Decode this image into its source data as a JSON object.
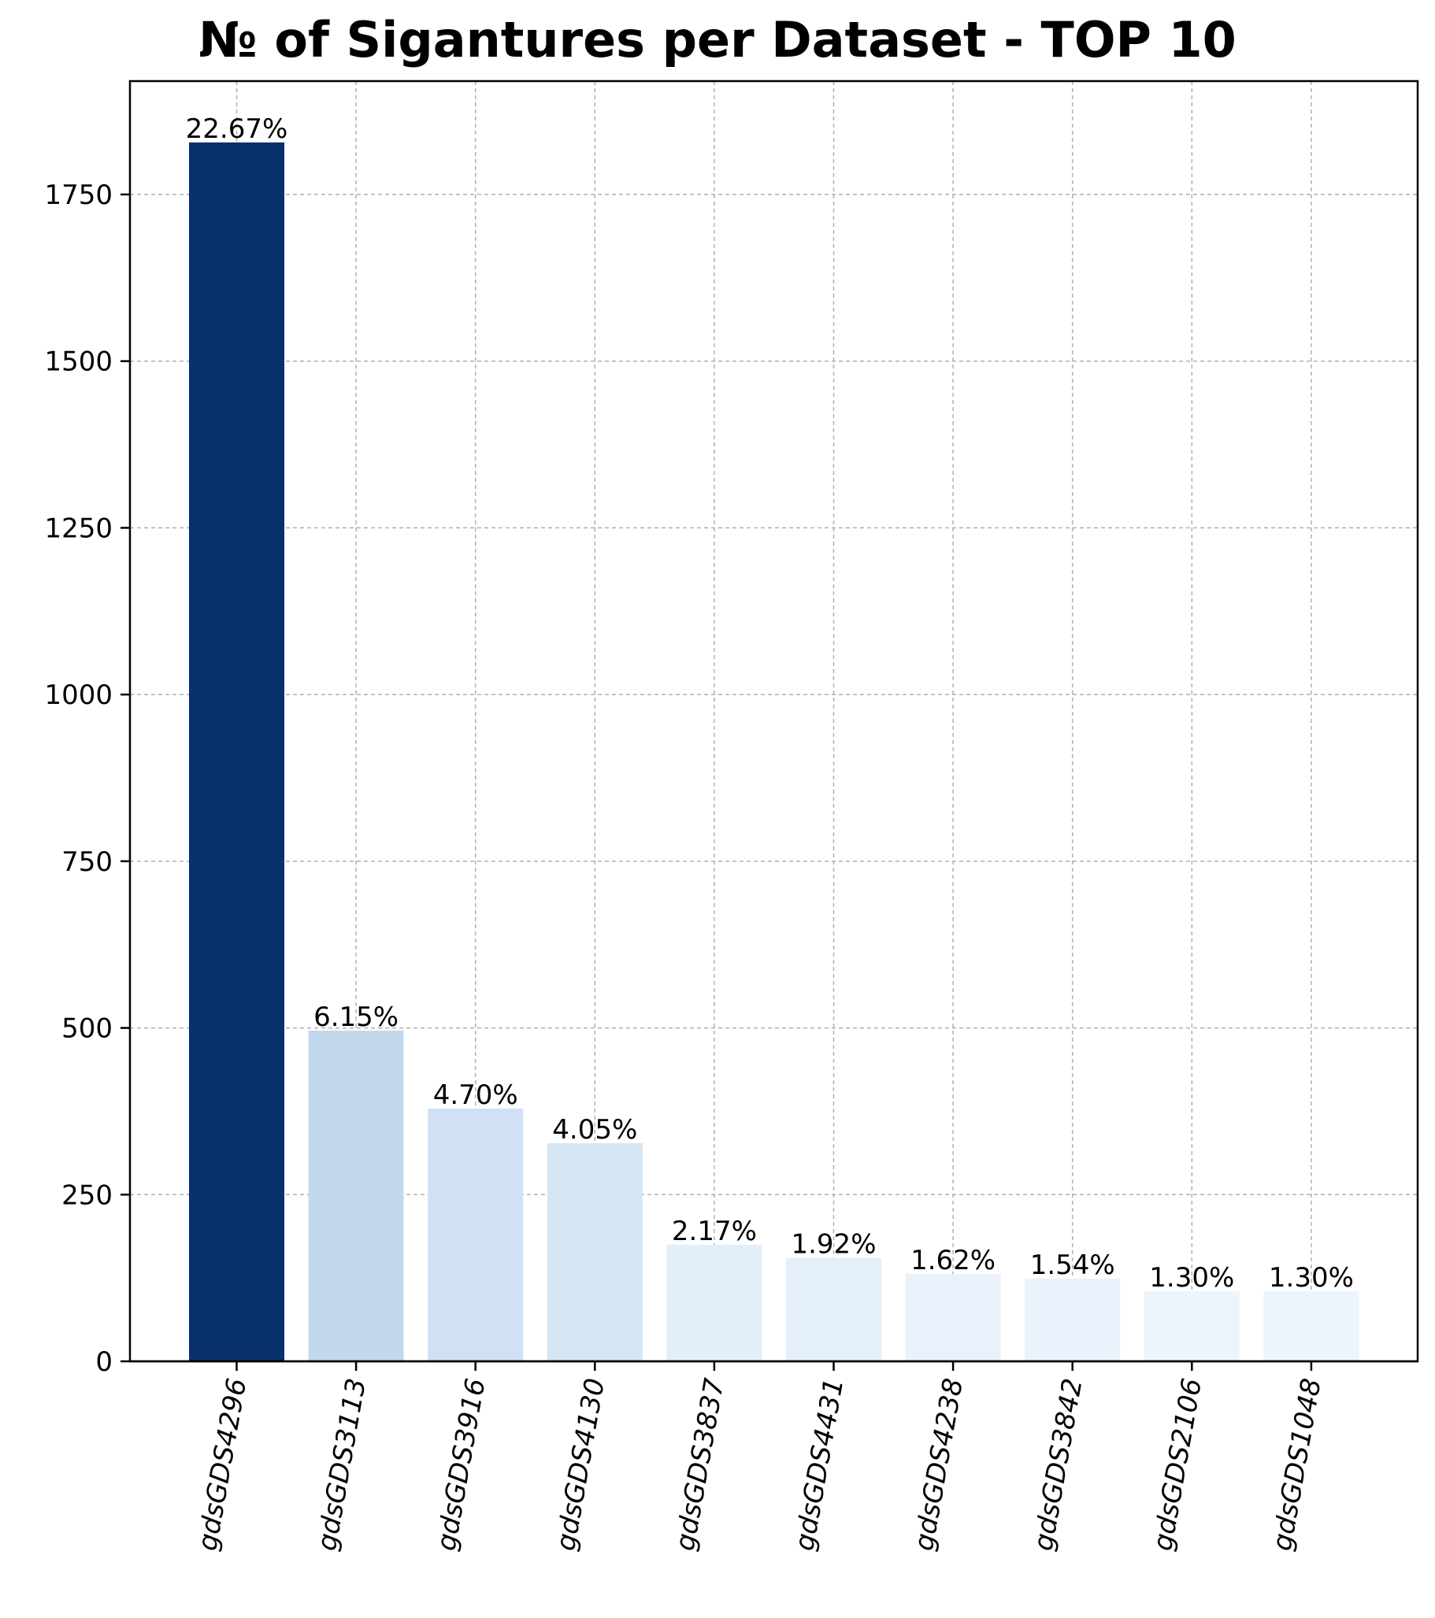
{
  "chart_data": {
    "type": "bar",
    "title": "№ of Sigantures per Dataset - TOP 10",
    "xlabel": "",
    "ylabel": "",
    "categories": [
      "gdsGDS4296",
      "gdsGDS3113",
      "gdsGDS3916",
      "gdsGDS4130",
      "gdsGDS3837",
      "gdsGDS4431",
      "gdsGDS4238",
      "gdsGDS3842",
      "gdsGDS2106",
      "gdsGDS1048"
    ],
    "values": [
      1828,
      496,
      379,
      327,
      175,
      155,
      131,
      124,
      105,
      105
    ],
    "data_labels": [
      "22.67%",
      "6.15%",
      "4.70%",
      "4.05%",
      "2.17%",
      "1.92%",
      "1.62%",
      "1.54%",
      "1.30%",
      "1.30%"
    ],
    "colors": [
      "#08306b",
      "#c2d8ec",
      "#cfe1f2",
      "#d5e5f4",
      "#e3eef9",
      "#e5eff9",
      "#e9f2fa",
      "#eaf2fb",
      "#edf4fc",
      "#edf4fc"
    ],
    "yticks": [
      0,
      250,
      500,
      750,
      1000,
      1250,
      1500,
      1750
    ],
    "ylim": [
      0,
      1920
    ],
    "grid": true,
    "xtick_rotation": 80
  }
}
